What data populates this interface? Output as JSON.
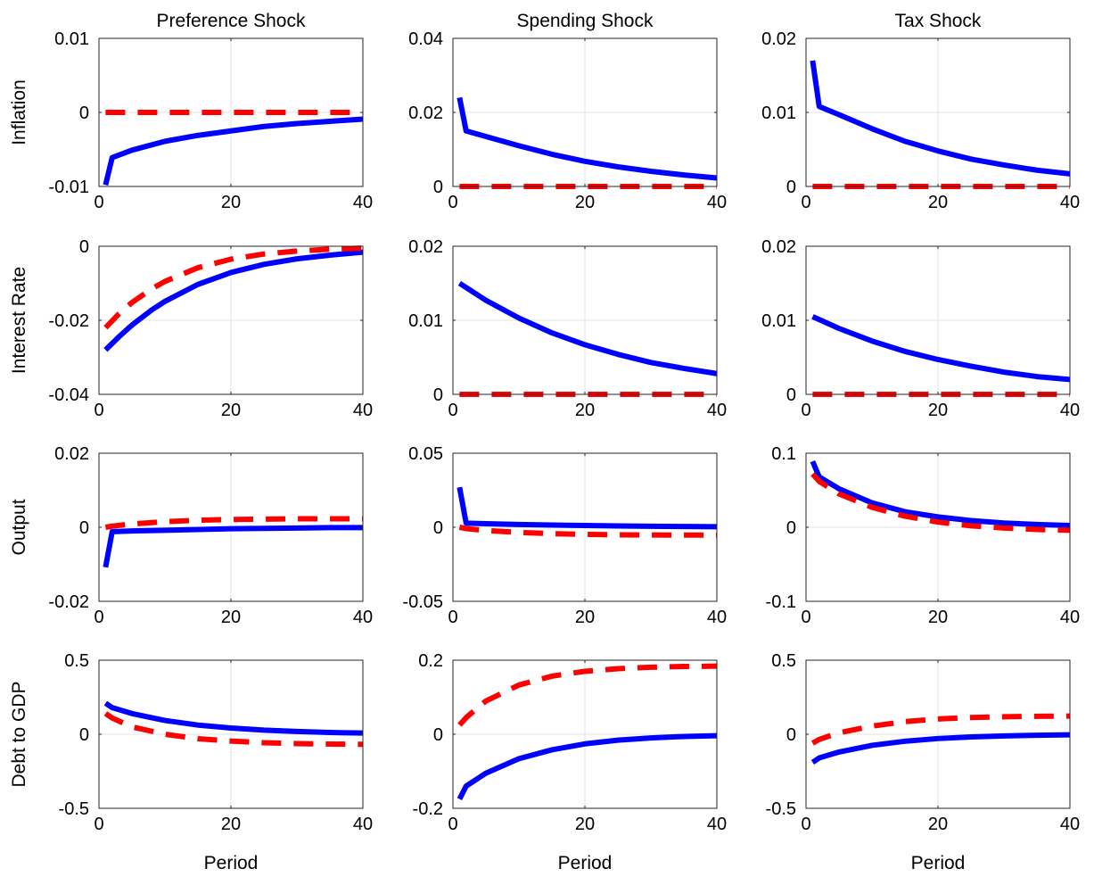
{
  "chart_data": {
    "type": "line",
    "layout": "4x3 grid of line charts",
    "column_titles": [
      "Preference Shock",
      "Spending Shock",
      "Tax Shock"
    ],
    "row_labels": [
      "Inflation",
      "Interest Rate",
      "Output",
      "Debt to GDP"
    ],
    "xlabel": "Period",
    "xlim": [
      0,
      40
    ],
    "xticks": [
      0,
      20,
      40
    ],
    "grid": true,
    "colors": {
      "solid": "#0000ff",
      "dashed": "#ff0000",
      "axes": "#262626",
      "grid": "#e3e3e3"
    },
    "panels": [
      {
        "row": "Inflation",
        "column": "Preference Shock",
        "ylim": [
          -0.01,
          0.01
        ],
        "yticks": [
          -0.01,
          0,
          0.01
        ],
        "ytick_labels": [
          "-0.01",
          "0",
          "0.01"
        ],
        "series": [
          {
            "style": "solid",
            "color": "#0000ff",
            "x": [
              1,
              2,
              5,
              10,
              15,
              20,
              25,
              30,
              35,
              40
            ],
            "y": [
              -0.0098,
              -0.0061,
              -0.0051,
              -0.0039,
              -0.0031,
              -0.0025,
              -0.0019,
              -0.0015,
              -0.0012,
              -0.0009
            ]
          },
          {
            "style": "dashed",
            "color": "#ff0000",
            "x": [
              1,
              40
            ],
            "y": [
              0,
              0
            ]
          }
        ]
      },
      {
        "row": "Inflation",
        "column": "Spending Shock",
        "ylim": [
          0,
          0.04
        ],
        "yticks": [
          0,
          0.02,
          0.04
        ],
        "ytick_labels": [
          "0",
          "0.02",
          "0.04"
        ],
        "series": [
          {
            "style": "solid",
            "color": "#0000ff",
            "x": [
              1,
              2,
              5,
              10,
              15,
              20,
              25,
              30,
              35,
              40
            ],
            "y": [
              0.024,
              0.015,
              0.0135,
              0.011,
              0.0087,
              0.0068,
              0.0053,
              0.0041,
              0.0031,
              0.0023
            ]
          },
          {
            "style": "dashed",
            "color": "#ff0000",
            "x": [
              1,
              40
            ],
            "y": [
              0,
              0
            ]
          }
        ]
      },
      {
        "row": "Inflation",
        "column": "Tax Shock",
        "ylim": [
          0,
          0.02
        ],
        "yticks": [
          0,
          0.01,
          0.02
        ],
        "ytick_labels": [
          "0",
          "0.01",
          "0.02"
        ],
        "series": [
          {
            "style": "solid",
            "color": "#0000ff",
            "x": [
              1,
              2,
              5,
              10,
              15,
              20,
              25,
              30,
              35,
              40
            ],
            "y": [
              0.017,
              0.0108,
              0.0097,
              0.0078,
              0.0061,
              0.0048,
              0.0037,
              0.0029,
              0.0022,
              0.0017
            ]
          },
          {
            "style": "dashed",
            "color": "#ff0000",
            "x": [
              1,
              40
            ],
            "y": [
              0,
              0
            ]
          }
        ]
      },
      {
        "row": "Interest Rate",
        "column": "Preference Shock",
        "ylim": [
          -0.04,
          0
        ],
        "yticks": [
          -0.04,
          -0.02,
          0
        ],
        "ytick_labels": [
          "-0.04",
          "-0.02",
          "0"
        ],
        "series": [
          {
            "style": "solid",
            "color": "#0000ff",
            "x": [
              1,
              3,
              5,
              8,
              10,
              15,
              20,
              25,
              30,
              35,
              40
            ],
            "y": [
              -0.028,
              -0.0245,
              -0.0213,
              -0.0172,
              -0.0149,
              -0.0103,
              -0.0071,
              -0.0049,
              -0.0034,
              -0.0024,
              -0.0016
            ]
          },
          {
            "style": "dashed",
            "color": "#ff0000",
            "x": [
              1,
              3,
              5,
              8,
              10,
              15,
              20,
              25,
              30,
              35,
              40
            ],
            "y": [
              -0.022,
              -0.0183,
              -0.0152,
              -0.0115,
              -0.0095,
              -0.0058,
              -0.0035,
              -0.0021,
              -0.0013,
              -0.0008,
              -0.0005
            ]
          }
        ]
      },
      {
        "row": "Interest Rate",
        "column": "Spending Shock",
        "ylim": [
          0,
          0.02
        ],
        "yticks": [
          0,
          0.01,
          0.02
        ],
        "ytick_labels": [
          "0",
          "0.01",
          "0.02"
        ],
        "series": [
          {
            "style": "solid",
            "color": "#0000ff",
            "x": [
              1,
              5,
              10,
              15,
              20,
              25,
              30,
              35,
              40
            ],
            "y": [
              0.015,
              0.0127,
              0.0103,
              0.0083,
              0.0067,
              0.0054,
              0.0043,
              0.0035,
              0.0028
            ]
          },
          {
            "style": "dashed",
            "color": "#ff0000",
            "x": [
              1,
              40
            ],
            "y": [
              0,
              0
            ]
          }
        ]
      },
      {
        "row": "Interest Rate",
        "column": "Tax Shock",
        "ylim": [
          0,
          0.02
        ],
        "yticks": [
          0,
          0.01,
          0.02
        ],
        "ytick_labels": [
          "0",
          "0.01",
          "0.02"
        ],
        "series": [
          {
            "style": "solid",
            "color": "#0000ff",
            "x": [
              1,
              5,
              10,
              15,
              20,
              25,
              30,
              35,
              40
            ],
            "y": [
              0.0105,
              0.0089,
              0.0072,
              0.0058,
              0.0047,
              0.0038,
              0.003,
              0.0024,
              0.002
            ]
          },
          {
            "style": "dashed",
            "color": "#ff0000",
            "x": [
              1,
              40
            ],
            "y": [
              0,
              0
            ]
          }
        ]
      },
      {
        "row": "Output",
        "column": "Preference Shock",
        "ylim": [
          -0.02,
          0.02
        ],
        "yticks": [
          -0.02,
          0,
          0.02
        ],
        "ytick_labels": [
          "-0.02",
          "0",
          "0.02"
        ],
        "series": [
          {
            "style": "solid",
            "color": "#0000ff",
            "x": [
              1,
              2,
              5,
              10,
              15,
              20,
              25,
              30,
              35,
              40
            ],
            "y": [
              -0.0108,
              -0.0012,
              -0.001,
              -0.0008,
              -0.0006,
              -0.0004,
              -0.0003,
              -0.0002,
              -0.0001,
              -0.0001
            ]
          },
          {
            "style": "dashed",
            "color": "#ff0000",
            "x": [
              1,
              2,
              5,
              10,
              15,
              20,
              25,
              30,
              35,
              40
            ],
            "y": [
              0,
              0.0003,
              0.0009,
              0.0015,
              0.0019,
              0.0021,
              0.0022,
              0.0023,
              0.0023,
              0.0023
            ]
          }
        ]
      },
      {
        "row": "Output",
        "column": "Spending Shock",
        "ylim": [
          -0.05,
          0.05
        ],
        "yticks": [
          -0.05,
          0,
          0.05
        ],
        "ytick_labels": [
          "-0.05",
          "0",
          "0.05"
        ],
        "series": [
          {
            "style": "solid",
            "color": "#0000ff",
            "x": [
              1,
              2,
              5,
              10,
              15,
              20,
              25,
              30,
              35,
              40
            ],
            "y": [
              0.027,
              0.0028,
              0.0024,
              0.0019,
              0.0015,
              0.0012,
              0.0009,
              0.0007,
              0.0005,
              0.0004
            ]
          },
          {
            "style": "dashed",
            "color": "#ff0000",
            "x": [
              1,
              2,
              5,
              10,
              15,
              20,
              25,
              30,
              35,
              40
            ],
            "y": [
              0,
              -0.0009,
              -0.0022,
              -0.0035,
              -0.0043,
              -0.0048,
              -0.0051,
              -0.0052,
              -0.0053,
              -0.0053
            ]
          }
        ]
      },
      {
        "row": "Output",
        "column": "Tax Shock",
        "ylim": [
          -0.1,
          0.1
        ],
        "yticks": [
          -0.1,
          0,
          0.1
        ],
        "ytick_labels": [
          "-0.1",
          "0",
          "0.1"
        ],
        "series": [
          {
            "style": "solid",
            "color": "#0000ff",
            "x": [
              1,
              2,
              5,
              10,
              15,
              20,
              25,
              30,
              35,
              40
            ],
            "y": [
              0.089,
              0.068,
              0.052,
              0.033,
              0.021,
              0.014,
              0.009,
              0.0058,
              0.0037,
              0.0024
            ]
          },
          {
            "style": "dashed",
            "color": "#ff0000",
            "x": [
              1,
              2,
              5,
              10,
              15,
              20,
              25,
              30,
              35,
              40
            ],
            "y": [
              0.072,
              0.062,
              0.045,
              0.027,
              0.015,
              0.007,
              0.002,
              -0.001,
              -0.003,
              -0.004
            ]
          }
        ]
      },
      {
        "row": "Debt to GDP",
        "column": "Preference Shock",
        "ylim": [
          -0.5,
          0.5
        ],
        "yticks": [
          -0.5,
          0,
          0.5
        ],
        "ytick_labels": [
          "-0.5",
          "0",
          "0.5"
        ],
        "series": [
          {
            "style": "solid",
            "color": "#0000ff",
            "x": [
              1,
              2,
              5,
              10,
              15,
              20,
              25,
              30,
              35,
              40
            ],
            "y": [
              0.21,
              0.18,
              0.14,
              0.093,
              0.062,
              0.042,
              0.028,
              0.019,
              0.012,
              0.008
            ]
          },
          {
            "style": "dashed",
            "color": "#ff0000",
            "x": [
              1,
              2,
              5,
              10,
              15,
              20,
              25,
              30,
              35,
              40
            ],
            "y": [
              0.14,
              0.11,
              0.05,
              0.0,
              -0.03,
              -0.046,
              -0.057,
              -0.063,
              -0.066,
              -0.068
            ]
          }
        ]
      },
      {
        "row": "Debt to GDP",
        "column": "Spending Shock",
        "ylim": [
          -0.2,
          0.2
        ],
        "yticks": [
          -0.2,
          0,
          0.2
        ],
        "ytick_labels": [
          "-0.2",
          "0",
          "0.2"
        ],
        "series": [
          {
            "style": "solid",
            "color": "#0000ff",
            "x": [
              1,
              2,
              5,
              10,
              15,
              20,
              25,
              30,
              35,
              40
            ],
            "y": [
              -0.175,
              -0.14,
              -0.105,
              -0.066,
              -0.042,
              -0.026,
              -0.016,
              -0.01,
              -0.006,
              -0.004
            ]
          },
          {
            "style": "dashed",
            "color": "#ff0000",
            "x": [
              1,
              2,
              5,
              10,
              15,
              20,
              25,
              30,
              35,
              40
            ],
            "y": [
              0.025,
              0.045,
              0.09,
              0.133,
              0.157,
              0.17,
              0.177,
              0.181,
              0.183,
              0.184
            ]
          }
        ]
      },
      {
        "row": "Debt to GDP",
        "column": "Tax Shock",
        "ylim": [
          -0.5,
          0.5
        ],
        "yticks": [
          -0.5,
          0,
          0.5
        ],
        "ytick_labels": [
          "-0.5",
          "0",
          "0.5"
        ],
        "series": [
          {
            "style": "solid",
            "color": "#0000ff",
            "x": [
              1,
              2,
              5,
              10,
              15,
              20,
              25,
              30,
              35,
              40
            ],
            "y": [
              -0.19,
              -0.16,
              -0.12,
              -0.075,
              -0.047,
              -0.029,
              -0.018,
              -0.011,
              -0.007,
              -0.004
            ]
          },
          {
            "style": "dashed",
            "color": "#ff0000",
            "x": [
              1,
              2,
              5,
              10,
              15,
              20,
              25,
              30,
              35,
              40
            ],
            "y": [
              -0.06,
              -0.035,
              0.01,
              0.055,
              0.085,
              0.103,
              0.113,
              0.118,
              0.121,
              0.123
            ]
          }
        ]
      }
    ]
  }
}
